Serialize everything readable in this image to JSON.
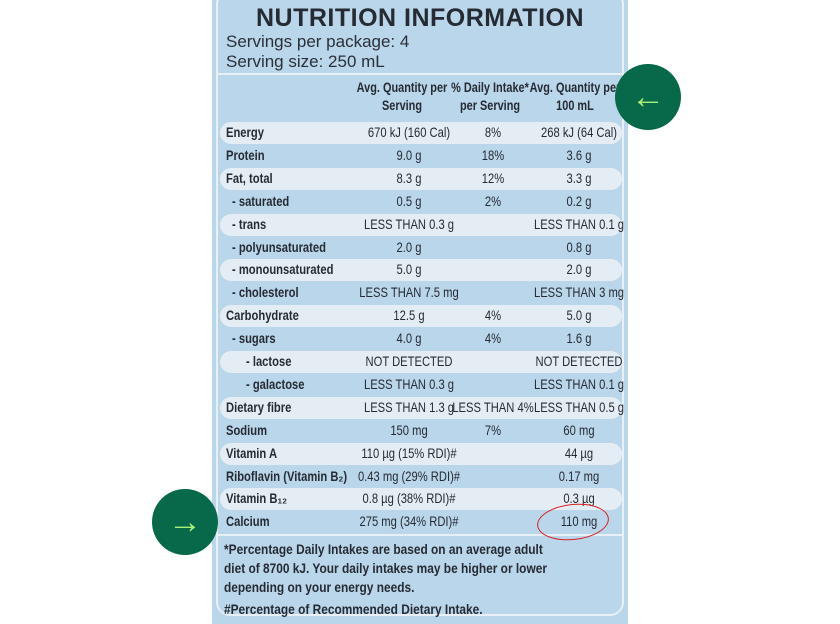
{
  "title": "NUTRITION INFORMATION",
  "servings_per_package": "Servings per package: 4",
  "serving_size": "Serving size: 250 mL",
  "columns": [
    "Avg. Quantity per Serving",
    "% Daily Intake* per Serving",
    "Avg. Quantity per 100 mL"
  ],
  "rows": [
    {
      "name": "Energy",
      "per_serving": "670 kJ (160 Cal)",
      "di": "8%",
      "per_100": "268 kJ (64 Cal)"
    },
    {
      "name": "Protein",
      "per_serving": "9.0 g",
      "di": "18%",
      "per_100": "3.6 g"
    },
    {
      "name": "Fat, total",
      "per_serving": "8.3 g",
      "di": "12%",
      "per_100": "3.3 g"
    },
    {
      "name": "- saturated",
      "per_serving": "0.5 g",
      "di": "2%",
      "per_100": "0.2 g"
    },
    {
      "name": "- trans",
      "per_serving": "LESS THAN 0.3 g",
      "di": "",
      "per_100": "LESS THAN 0.1 g"
    },
    {
      "name": "- polyunsaturated",
      "per_serving": "2.0 g",
      "di": "",
      "per_100": "0.8 g"
    },
    {
      "name": "- monounsaturated",
      "per_serving": "5.0 g",
      "di": "",
      "per_100": "2.0 g"
    },
    {
      "name": "- cholesterol",
      "per_serving": "LESS THAN 7.5 mg",
      "di": "",
      "per_100": "LESS THAN 3 mg"
    },
    {
      "name": "Carbohydrate",
      "per_serving": "12.5 g",
      "di": "4%",
      "per_100": "5.0 g"
    },
    {
      "name": "- sugars",
      "per_serving": "4.0 g",
      "di": "4%",
      "per_100": "1.6 g"
    },
    {
      "name": "- lactose",
      "per_serving": "NOT DETECTED",
      "di": "",
      "per_100": "NOT DETECTED"
    },
    {
      "name": "- galactose",
      "per_serving": "LESS THAN 0.3 g",
      "di": "",
      "per_100": "LESS THAN 0.1 g"
    },
    {
      "name": "Dietary fibre",
      "per_serving": "LESS THAN 1.3 g",
      "di": "LESS THAN 4%",
      "per_100": "LESS THAN 0.5 g"
    },
    {
      "name": "Sodium",
      "per_serving": "150 mg",
      "di": "7%",
      "per_100": "60 mg"
    },
    {
      "name": "Vitamin A",
      "per_serving": "110 µg (15% RDI)#",
      "di": "",
      "per_100": "44 µg"
    },
    {
      "name": "Riboflavin (Vitamin B₂)",
      "per_serving": "0.43 mg (29% RDI)#",
      "di": "",
      "per_100": "0.17 mg"
    },
    {
      "name": "Vitamin B₁₂",
      "per_serving": "0.8 µg (38% RDI)#",
      "di": "",
      "per_100": "0.3 µg"
    },
    {
      "name": "Calcium",
      "per_serving": "275 mg (34% RDI)#",
      "di": "",
      "per_100": "110 mg"
    }
  ],
  "footnote_1": "*Percentage Daily Intakes are based on an average adult diet of 8700 kJ. Your daily intakes may be higher or lower depending on your energy needs.",
  "footnote_2": "#Percentage of Recommended Dietary Intake.",
  "annotations": {
    "right_arrow": "←",
    "left_arrow": "→",
    "highlight_color": "#d82020",
    "arrow_bg": "#07694a",
    "arrow_fg": "#a9f07a"
  }
}
